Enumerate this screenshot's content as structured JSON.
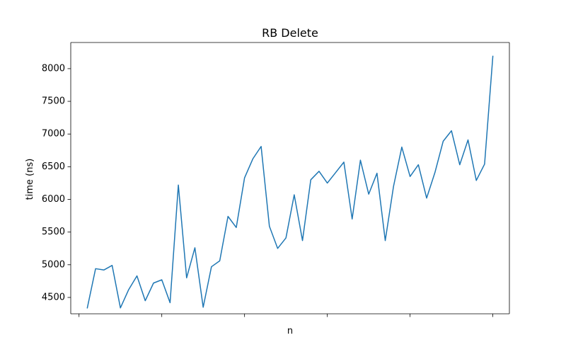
{
  "chart_data": {
    "type": "line",
    "title": "RB Delete",
    "xlabel": "n",
    "ylabel": "time (ns)",
    "xlim": [
      -1,
      52
    ],
    "ylim": [
      4250,
      8400
    ],
    "x_ticks": [
      0,
      10,
      20,
      30,
      40,
      50
    ],
    "x_tick_labels_shown": false,
    "y_ticks": [
      4500,
      5000,
      5500,
      6000,
      6500,
      7000,
      7500,
      8000
    ],
    "grid": false,
    "legend": "none",
    "series": [
      {
        "color": "#1f77b4",
        "x": [
          1,
          2,
          3,
          4,
          5,
          6,
          7,
          8,
          9,
          10,
          11,
          12,
          13,
          14,
          15,
          16,
          17,
          18,
          19,
          20,
          21,
          22,
          23,
          24,
          25,
          26,
          27,
          28,
          29,
          30,
          31,
          32,
          33,
          34,
          35,
          36,
          37,
          38,
          39,
          40,
          41,
          42,
          43,
          44,
          45,
          46,
          47,
          48,
          49,
          50
        ],
        "values": [
          4340,
          4940,
          4920,
          4990,
          4340,
          4620,
          4830,
          4450,
          4720,
          4770,
          4420,
          6220,
          4800,
          5260,
          4350,
          4970,
          5060,
          5740,
          5570,
          6330,
          6620,
          6810,
          5590,
          5250,
          5410,
          6070,
          5370,
          6300,
          6430,
          6250,
          6410,
          6570,
          5700,
          6600,
          6080,
          6400,
          5370,
          6200,
          6800,
          6350,
          6530,
          6020,
          6410,
          6890,
          7050,
          6530,
          6910,
          6290,
          6540,
          8190
        ]
      }
    ]
  }
}
